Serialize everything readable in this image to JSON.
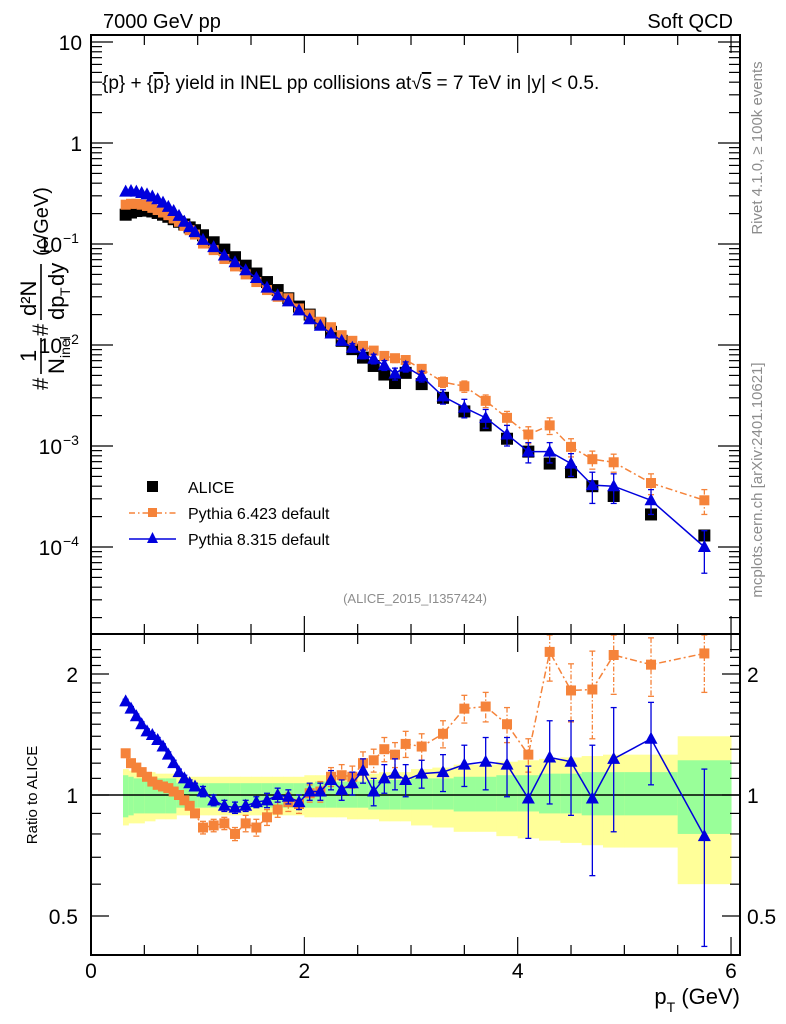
{
  "header": {
    "left": "7000 GeV pp",
    "right": "Soft QCD"
  },
  "side_labels": {
    "rivet": "Rivet 4.1.0, ≥ 100k events",
    "mcplots": "mcplots.cern.ch [arXiv:2401.10621]"
  },
  "colors": {
    "alice": "#000000",
    "pythia6": "#f5833a",
    "pythia8": "#0000dd",
    "band_inner": "#99ff99",
    "band_outer": "#ffff99"
  },
  "chart_data": [
    {
      "type": "scatter",
      "panel": "main",
      "title": "{p} + {p̅} yield in INEL pp collisions at √s =  7 TeV in |y| < 0.5.",
      "title_parts": {
        "a": "{p} + {",
        "pbar": "p",
        "b": "} yield in INEL pp collisions at",
        "sqrt": "s",
        "c": " =  7 TeV in |y| < 0.5."
      },
      "xlabel": "p_T (GeV)",
      "ylabel": "1/N_inel d²N/dp_T dy (c/GeV)",
      "ylabel_parts": {
        "one": "1",
        "n": "N",
        "inel": "inel",
        "num": "d²N",
        "den": "dp",
        "T": "T",
        "dy": "dy",
        "unit": "(c/GeV)",
        "hash": "#"
      },
      "yscale": "log",
      "xlim": [
        0,
        6.1
      ],
      "ylim": [
        2e-05,
        12
      ],
      "yticks": [
        {
          "v": 10,
          "label": "10",
          "exp": ""
        },
        {
          "v": 1,
          "label": "1",
          "exp": ""
        },
        {
          "v": 0.1,
          "label": "10",
          "exp": "−1"
        },
        {
          "v": 0.01,
          "label": "10",
          "exp": "−2"
        },
        {
          "v": 0.001,
          "label": "10",
          "exp": "−3"
        },
        {
          "v": 0.0001,
          "label": "10",
          "exp": "−4"
        }
      ],
      "legend_position": "bottom-left",
      "annotation": "(ALICE_2015_I1357424)",
      "x": [
        0.325,
        0.375,
        0.425,
        0.475,
        0.525,
        0.575,
        0.625,
        0.675,
        0.725,
        0.775,
        0.825,
        0.875,
        0.925,
        0.975,
        1.05,
        1.15,
        1.25,
        1.35,
        1.45,
        1.55,
        1.65,
        1.75,
        1.85,
        1.95,
        2.05,
        2.15,
        2.25,
        2.35,
        2.45,
        2.55,
        2.65,
        2.75,
        2.85,
        2.95,
        3.1,
        3.3,
        3.5,
        3.7,
        3.9,
        4.1,
        4.3,
        4.5,
        4.7,
        4.9,
        5.25,
        5.75
      ],
      "series": [
        {
          "name": "ALICE",
          "key": "alice",
          "marker": "square",
          "line": "none",
          "values": [
            0.195,
            0.205,
            0.212,
            0.215,
            0.214,
            0.21,
            0.203,
            0.195,
            0.186,
            0.176,
            0.166,
            0.156,
            0.146,
            0.137,
            0.122,
            0.104,
            0.088,
            0.074,
            0.061,
            0.051,
            0.042,
            0.035,
            0.029,
            0.024,
            0.02,
            0.0163,
            0.0135,
            0.011,
            0.0091,
            0.0075,
            0.0062,
            0.0051,
            0.0042,
            0.0053,
            0.0041,
            0.003,
            0.0022,
            0.0016,
            0.00118,
            0.00088,
            0.00067,
            0.00055,
            0.0004,
            0.00032,
            0.00021,
            0.00013
          ]
        },
        {
          "name": "Pythia 6.423 default",
          "key": "pythia6",
          "marker": "square",
          "line": "dashdot",
          "values": [
            0.245,
            0.25,
            0.25,
            0.245,
            0.238,
            0.228,
            0.217,
            0.205,
            0.193,
            0.179,
            0.166,
            0.151,
            0.137,
            0.124,
            0.101,
            0.087,
            0.071,
            0.06,
            0.05,
            0.042,
            0.035,
            0.03,
            0.029,
            0.023,
            0.02,
            0.017,
            0.015,
            0.0125,
            0.011,
            0.0098,
            0.0088,
            0.0078,
            0.0074,
            0.0071,
            0.0058,
            0.0043,
            0.0039,
            0.0028,
            0.0019,
            0.0013,
            0.0016,
            0.00098,
            0.00074,
            0.00069,
            0.00043,
            0.00029
          ],
          "errors": [
            0,
            0,
            0,
            0,
            0,
            0,
            0,
            0,
            0,
            0,
            0,
            0,
            0,
            0,
            0,
            0,
            0,
            0,
            0,
            0,
            0,
            0,
            0,
            0,
            0,
            0,
            0,
            0,
            0.0008,
            0.0008,
            0.0008,
            0.0007,
            0.0007,
            0.0007,
            0.0006,
            0.0005,
            0.0005,
            0.0004,
            0.0003,
            0.00025,
            0.0003,
            0.0002,
            0.00015,
            0.00014,
            0.0001,
            8e-05
          ]
        },
        {
          "name": "Pythia 8.315 default",
          "key": "pythia8",
          "marker": "triangle",
          "line": "solid",
          "values": [
            0.33,
            0.335,
            0.33,
            0.32,
            0.31,
            0.295,
            0.277,
            0.257,
            0.233,
            0.212,
            0.19,
            0.166,
            0.147,
            0.131,
            0.11,
            0.093,
            0.077,
            0.066,
            0.055,
            0.046,
            0.037,
            0.031,
            0.027,
            0.022,
            0.018,
            0.0155,
            0.013,
            0.011,
            0.0094,
            0.0081,
            0.0073,
            0.0063,
            0.0052,
            0.0061,
            0.0049,
            0.0031,
            0.0024,
            0.0019,
            0.0013,
            0.00088,
            0.00088,
            0.00067,
            0.00041,
            0.0004,
            0.00029,
            0.0001
          ],
          "errors": [
            0,
            0,
            0,
            0,
            0,
            0,
            0,
            0,
            0,
            0,
            0,
            0,
            0,
            0,
            0,
            0,
            0,
            0,
            0,
            0,
            0,
            0,
            0,
            0,
            0,
            0,
            0,
            0,
            0.0009,
            0.0008,
            0.0008,
            0.0007,
            0.0007,
            0.0007,
            0.0006,
            0.0005,
            0.0005,
            0.0004,
            0.0003,
            0.0002,
            0.0002,
            0.00017,
            0.00014,
            0.00013,
            8e-05,
            4.5e-05
          ]
        }
      ]
    },
    {
      "type": "scatter",
      "panel": "ratio",
      "ylabel": "Ratio to ALICE",
      "xlabel": "p_T (GeV)",
      "xlabel_parts": {
        "p": "p",
        "T": "T",
        "unit": " (GeV)"
      },
      "yscale": "log",
      "xlim": [
        0,
        6.1
      ],
      "ylim": [
        0.36,
        2.35
      ],
      "yticks": [
        {
          "v": 2,
          "label": "2"
        },
        {
          "v": 1,
          "label": "1"
        },
        {
          "v": 0.5,
          "label": "0.5"
        }
      ],
      "xticks": [
        {
          "v": 0,
          "label": "0"
        },
        {
          "v": 2,
          "label": "2"
        },
        {
          "v": 4,
          "label": "4"
        },
        {
          "v": 6,
          "label": "6"
        }
      ],
      "reference_line": 1,
      "bands": {
        "edges": [
          0.3,
          0.35,
          0.4,
          0.5,
          0.6,
          0.7,
          0.8,
          0.9,
          1.0,
          1.1,
          1.2,
          1.3,
          1.4,
          1.5,
          1.6,
          1.7,
          1.8,
          1.9,
          2.0,
          2.1,
          2.2,
          2.3,
          2.4,
          2.5,
          2.6,
          2.7,
          2.8,
          2.9,
          3.0,
          3.2,
          3.4,
          3.6,
          3.8,
          4.0,
          4.2,
          4.4,
          4.6,
          4.8,
          5.0,
          5.5,
          6.0
        ],
        "inner_lo": [
          0.88,
          0.89,
          0.9,
          0.9,
          0.9,
          0.9,
          0.93,
          0.93,
          0.93,
          0.93,
          0.93,
          0.93,
          0.93,
          0.93,
          0.93,
          0.93,
          0.93,
          0.93,
          0.93,
          0.93,
          0.93,
          0.93,
          0.93,
          0.93,
          0.92,
          0.92,
          0.92,
          0.92,
          0.92,
          0.92,
          0.91,
          0.91,
          0.91,
          0.91,
          0.9,
          0.9,
          0.89,
          0.89,
          0.89,
          0.8,
          0.8
        ],
        "inner_hi": [
          1.12,
          1.11,
          1.1,
          1.1,
          1.1,
          1.1,
          1.07,
          1.07,
          1.07,
          1.07,
          1.07,
          1.07,
          1.07,
          1.07,
          1.07,
          1.07,
          1.07,
          1.07,
          1.07,
          1.08,
          1.08,
          1.08,
          1.08,
          1.08,
          1.09,
          1.09,
          1.09,
          1.09,
          1.1,
          1.1,
          1.11,
          1.11,
          1.12,
          1.12,
          1.13,
          1.13,
          1.14,
          1.14,
          1.14,
          1.22,
          1.22
        ],
        "outer_lo": [
          0.84,
          0.85,
          0.85,
          0.86,
          0.87,
          0.87,
          0.89,
          0.89,
          0.89,
          0.89,
          0.89,
          0.89,
          0.89,
          0.89,
          0.89,
          0.89,
          0.89,
          0.89,
          0.88,
          0.88,
          0.88,
          0.88,
          0.87,
          0.87,
          0.87,
          0.86,
          0.86,
          0.86,
          0.84,
          0.83,
          0.81,
          0.81,
          0.79,
          0.78,
          0.77,
          0.76,
          0.75,
          0.74,
          0.74,
          0.6,
          0.6
        ],
        "outer_hi": [
          1.16,
          1.15,
          1.15,
          1.14,
          1.13,
          1.13,
          1.11,
          1.11,
          1.11,
          1.11,
          1.11,
          1.11,
          1.11,
          1.11,
          1.11,
          1.11,
          1.11,
          1.11,
          1.12,
          1.12,
          1.12,
          1.12,
          1.13,
          1.13,
          1.13,
          1.14,
          1.14,
          1.14,
          1.16,
          1.17,
          1.19,
          1.19,
          1.21,
          1.22,
          1.23,
          1.24,
          1.25,
          1.26,
          1.26,
          1.4,
          1.4
        ]
      },
      "x": [
        0.325,
        0.375,
        0.425,
        0.475,
        0.525,
        0.575,
        0.625,
        0.675,
        0.725,
        0.775,
        0.825,
        0.875,
        0.925,
        0.975,
        1.05,
        1.15,
        1.25,
        1.35,
        1.45,
        1.55,
        1.65,
        1.75,
        1.85,
        1.95,
        2.05,
        2.15,
        2.25,
        2.35,
        2.45,
        2.55,
        2.65,
        2.75,
        2.85,
        2.95,
        3.1,
        3.3,
        3.5,
        3.7,
        3.9,
        4.1,
        4.3,
        4.5,
        4.7,
        4.9,
        5.25,
        5.75
      ],
      "series": [
        {
          "name": "Pythia 6.423 default",
          "key": "pythia6",
          "marker": "square",
          "line": "dashdot",
          "values": [
            1.27,
            1.2,
            1.17,
            1.14,
            1.11,
            1.08,
            1.06,
            1.05,
            1.04,
            1.02,
            1.0,
            0.97,
            0.94,
            0.9,
            0.83,
            0.84,
            0.85,
            0.8,
            0.85,
            0.83,
            0.88,
            0.92,
            0.96,
            0.95,
            1.01,
            1.02,
            1.11,
            1.12,
            1.11,
            1.2,
            1.22,
            1.3,
            1.26,
            1.34,
            1.32,
            1.42,
            1.64,
            1.66,
            1.5,
            1.26,
            2.27,
            1.82,
            1.83,
            2.23,
            2.11,
            2.25
          ],
          "err": [
            0.03,
            0.02,
            0.02,
            0.02,
            0.02,
            0.02,
            0.02,
            0.02,
            0.02,
            0.02,
            0.02,
            0.02,
            0.02,
            0.02,
            0.03,
            0.03,
            0.03,
            0.03,
            0.04,
            0.04,
            0.04,
            0.04,
            0.05,
            0.05,
            0.05,
            0.06,
            0.06,
            0.07,
            0.07,
            0.08,
            0.08,
            0.09,
            0.09,
            0.1,
            0.1,
            0.11,
            0.13,
            0.14,
            0.15,
            0.12,
            0.35,
            0.3,
            0.45,
            0.45,
            0.35,
            0.45
          ]
        },
        {
          "name": "Pythia 8.315 default",
          "key": "pythia8",
          "marker": "triangle",
          "line": "solid",
          "values": [
            1.71,
            1.64,
            1.57,
            1.5,
            1.44,
            1.41,
            1.37,
            1.32,
            1.26,
            1.2,
            1.14,
            1.1,
            1.07,
            1.05,
            1.02,
            0.97,
            0.94,
            0.93,
            0.94,
            0.96,
            0.97,
            1.0,
            0.99,
            0.96,
            1.02,
            1.02,
            1.09,
            1.03,
            1.07,
            1.15,
            1.02,
            1.1,
            1.13,
            1.09,
            1.13,
            1.14,
            1.19,
            1.21,
            1.19,
            0.98,
            1.24,
            1.21,
            0.98,
            1.23,
            1.38,
            0.79
          ],
          "err": [
            0.02,
            0.02,
            0.02,
            0.02,
            0.02,
            0.02,
            0.02,
            0.02,
            0.02,
            0.02,
            0.02,
            0.02,
            0.02,
            0.02,
            0.03,
            0.03,
            0.03,
            0.03,
            0.03,
            0.03,
            0.04,
            0.04,
            0.04,
            0.04,
            0.05,
            0.05,
            0.06,
            0.06,
            0.07,
            0.08,
            0.08,
            0.09,
            0.1,
            0.1,
            0.09,
            0.12,
            0.14,
            0.18,
            0.2,
            0.2,
            0.29,
            0.32,
            0.35,
            0.42,
            0.32,
            0.37
          ]
        }
      ]
    }
  ]
}
